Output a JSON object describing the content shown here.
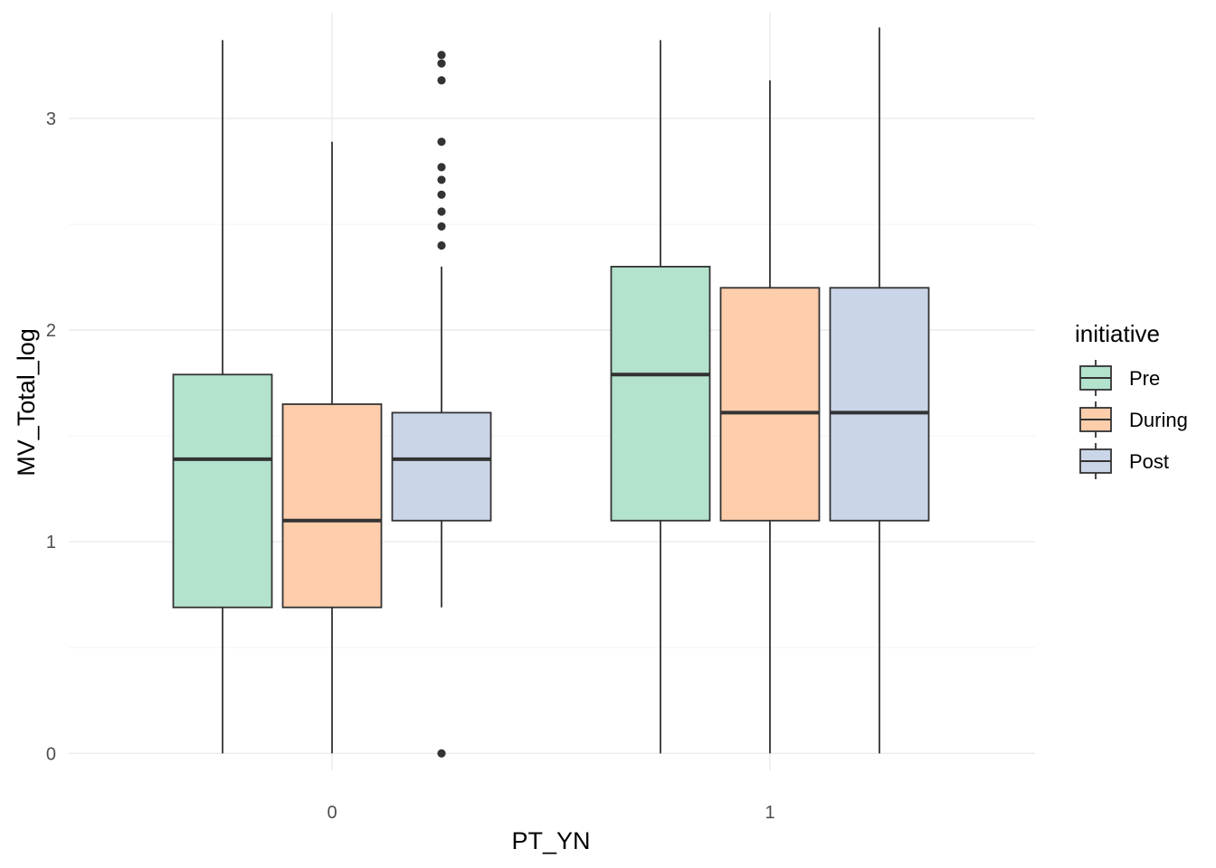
{
  "chart_data": {
    "type": "boxplot",
    "xlabel": "PT_YN",
    "ylabel": "MV_Total_log",
    "categories": [
      "0",
      "1"
    ],
    "ylim": [
      -0.08,
      3.5
    ],
    "yticks": [
      0,
      1,
      2,
      3
    ],
    "ytick_labels": [
      "0",
      "1",
      "2",
      "3"
    ],
    "grid": true,
    "legend": {
      "title": "initiative",
      "position": "right"
    },
    "series": [
      {
        "name": "Pre",
        "color": "#b3e2cd",
        "boxes": [
          {
            "category": "0",
            "min": 0.0,
            "q1": 0.69,
            "median": 1.39,
            "q3": 1.79,
            "max": 3.37,
            "outliers": []
          },
          {
            "category": "1",
            "min": 0.0,
            "q1": 1.1,
            "median": 1.79,
            "q3": 2.3,
            "max": 3.37,
            "outliers": []
          }
        ]
      },
      {
        "name": "During",
        "color": "#fdcdac",
        "boxes": [
          {
            "category": "0",
            "min": 0.0,
            "q1": 0.69,
            "median": 1.1,
            "q3": 1.65,
            "max": 2.89,
            "outliers": []
          },
          {
            "category": "1",
            "min": 0.0,
            "q1": 1.1,
            "median": 1.61,
            "q3": 2.2,
            "max": 3.18,
            "outliers": []
          }
        ]
      },
      {
        "name": "Post",
        "color": "#cbd5e8",
        "boxes": [
          {
            "category": "0",
            "min": 0.69,
            "q1": 1.1,
            "median": 1.39,
            "q3": 1.61,
            "max": 2.3,
            "outliers": [
              0.0,
              2.4,
              2.49,
              2.56,
              2.64,
              2.71,
              2.77,
              2.89,
              3.18,
              3.26,
              3.3
            ]
          },
          {
            "category": "1",
            "min": 0.0,
            "q1": 1.1,
            "median": 1.61,
            "q3": 2.2,
            "max": 3.43,
            "outliers": []
          }
        ]
      }
    ]
  }
}
